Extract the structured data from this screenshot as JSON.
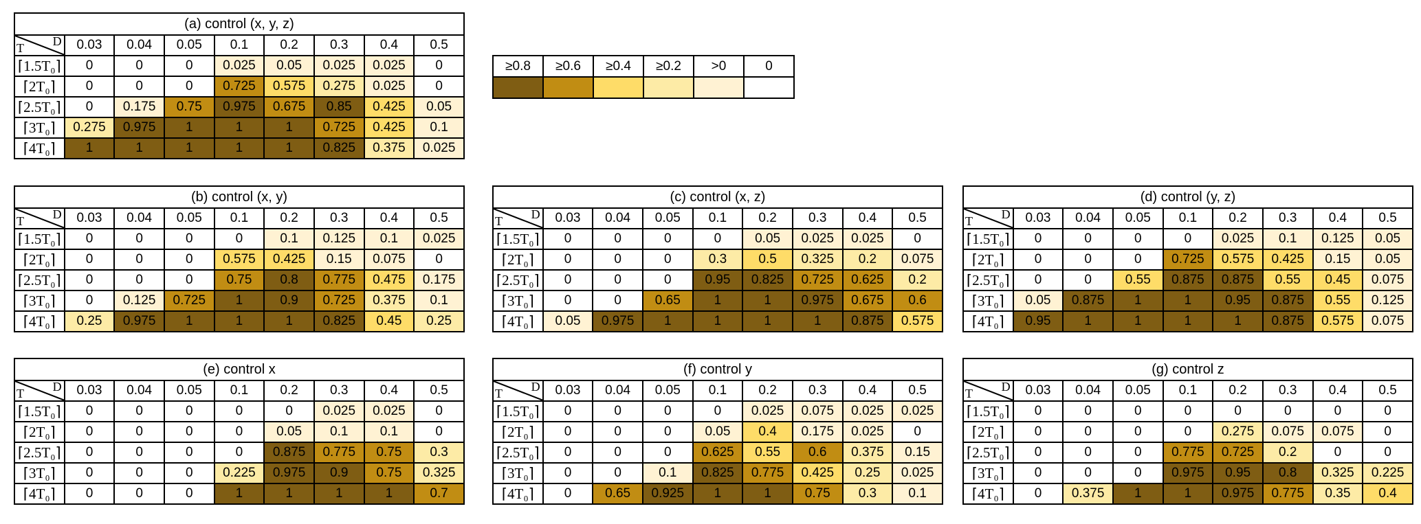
{
  "colors": {
    "c08": "#7f5d13",
    "c06": "#c18d13",
    "c04": "#fedc68",
    "c02": "#fdeba6",
    "c00": "#fff2d3",
    "zero": "#ffffff"
  },
  "legend": {
    "labels": [
      "≥0.8",
      "≥0.6",
      "≥0.4",
      "≥0.2",
      ">0",
      "0"
    ]
  },
  "table_header": {
    "t_label": "T",
    "d_label": "D",
    "columns": [
      "0.03",
      "0.04",
      "0.05",
      "0.1",
      "0.2",
      "0.3",
      "0.4",
      "0.5"
    ],
    "row_labels": [
      "⌈1.5T₀⌉",
      "⌈2T₀⌉",
      "⌈2.5T₀⌉",
      "⌈3T₀⌉",
      "⌈4T₀⌉"
    ]
  },
  "panels": [
    {
      "title": "(a) control (x, y, z)",
      "rows": [
        [
          "0",
          "0",
          "0",
          "0.025",
          "0.05",
          "0.025",
          "0.025",
          "0"
        ],
        [
          "0",
          "0",
          "0",
          "0.725",
          "0.575",
          "0.275",
          "0.025",
          "0"
        ],
        [
          "0",
          "0.175",
          "0.75",
          "0.975",
          "0.675",
          "0.85",
          "0.425",
          "0.05"
        ],
        [
          "0.275",
          "0.975",
          "1",
          "1",
          "1",
          "0.725",
          "0.425",
          "0.1"
        ],
        [
          "1",
          "1",
          "1",
          "1",
          "1",
          "0.825",
          "0.375",
          "0.025"
        ]
      ]
    },
    {
      "title": "(b) control (x, y)",
      "rows": [
        [
          "0",
          "0",
          "0",
          "0",
          "0.1",
          "0.125",
          "0.1",
          "0.025"
        ],
        [
          "0",
          "0",
          "0",
          "0.575",
          "0.425",
          "0.15",
          "0.075",
          "0"
        ],
        [
          "0",
          "0",
          "0",
          "0.75",
          "0.8",
          "0.775",
          "0.475",
          "0.175"
        ],
        [
          "0",
          "0.125",
          "0.725",
          "1",
          "0.9",
          "0.725",
          "0.375",
          "0.1"
        ],
        [
          "0.25",
          "0.975",
          "1",
          "1",
          "1",
          "0.825",
          "0.45",
          "0.25"
        ]
      ]
    },
    {
      "title": "(c) control (x, z)",
      "rows": [
        [
          "0",
          "0",
          "0",
          "0",
          "0.05",
          "0.025",
          "0.025",
          "0"
        ],
        [
          "0",
          "0",
          "0",
          "0.3",
          "0.5",
          "0.325",
          "0.2",
          "0.075"
        ],
        [
          "0",
          "0",
          "0",
          "0.95",
          "0.825",
          "0.725",
          "0.625",
          "0.2"
        ],
        [
          "0",
          "0",
          "0.65",
          "1",
          "1",
          "0.975",
          "0.675",
          "0.6"
        ],
        [
          "0.05",
          "0.975",
          "1",
          "1",
          "1",
          "1",
          "0.875",
          "0.575"
        ]
      ]
    },
    {
      "title": "(d) control (y, z)",
      "rows": [
        [
          "0",
          "0",
          "0",
          "0",
          "0.025",
          "0.1",
          "0.125",
          "0.05"
        ],
        [
          "0",
          "0",
          "0",
          "0.725",
          "0.575",
          "0.425",
          "0.15",
          "0.05"
        ],
        [
          "0",
          "0",
          "0.55",
          "0.875",
          "0.875",
          "0.55",
          "0.45",
          "0.075"
        ],
        [
          "0.05",
          "0.875",
          "1",
          "1",
          "0.95",
          "0.875",
          "0.55",
          "0.125"
        ],
        [
          "0.95",
          "1",
          "1",
          "1",
          "1",
          "0.875",
          "0.575",
          "0.075"
        ]
      ]
    },
    {
      "title": "(e) control x",
      "rows": [
        [
          "0",
          "0",
          "0",
          "0",
          "0",
          "0.025",
          "0.025",
          "0"
        ],
        [
          "0",
          "0",
          "0",
          "0",
          "0.05",
          "0.1",
          "0.1",
          "0"
        ],
        [
          "0",
          "0",
          "0",
          "0",
          "0.875",
          "0.775",
          "0.75",
          "0.3"
        ],
        [
          "0",
          "0",
          "0",
          "0.225",
          "0.975",
          "0.9",
          "0.75",
          "0.325"
        ],
        [
          "0",
          "0",
          "0",
          "1",
          "1",
          "1",
          "1",
          "0.7"
        ]
      ]
    },
    {
      "title": "(f) control y",
      "rows": [
        [
          "0",
          "0",
          "0",
          "0",
          "0.025",
          "0.075",
          "0.025",
          "0.025"
        ],
        [
          "0",
          "0",
          "0",
          "0.05",
          "0.4",
          "0.175",
          "0.025",
          "0"
        ],
        [
          "0",
          "0",
          "0",
          "0.625",
          "0.55",
          "0.6",
          "0.375",
          "0.15"
        ],
        [
          "0",
          "0",
          "0.1",
          "0.825",
          "0.775",
          "0.425",
          "0.25",
          "0.025"
        ],
        [
          "0",
          "0.65",
          "0.925",
          "1",
          "1",
          "0.75",
          "0.3",
          "0.1"
        ]
      ]
    },
    {
      "title": "(g) control z",
      "rows": [
        [
          "0",
          "0",
          "0",
          "0",
          "0",
          "0",
          "0",
          "0"
        ],
        [
          "0",
          "0",
          "0",
          "0",
          "0.275",
          "0.075",
          "0.075",
          "0"
        ],
        [
          "0",
          "0",
          "0",
          "0.775",
          "0.725",
          "0.2",
          "0",
          "0"
        ],
        [
          "0",
          "0",
          "0",
          "0.975",
          "0.95",
          "0.8",
          "0.325",
          "0.225"
        ],
        [
          "0",
          "0.375",
          "1",
          "1",
          "0.975",
          "0.775",
          "0.35",
          "0.4"
        ]
      ]
    }
  ]
}
